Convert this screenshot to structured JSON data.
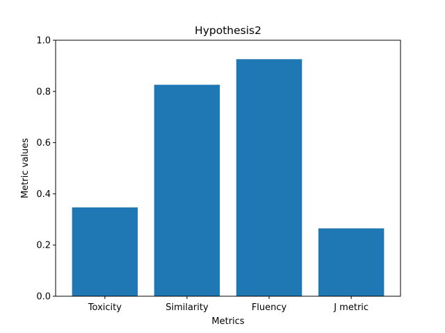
{
  "chart_data": {
    "type": "bar",
    "title": "Hypothesis2",
    "xlabel": "Metrics",
    "ylabel": "Metric values",
    "categories": [
      "Toxicity",
      "Similarity",
      "Fluency",
      "J metric"
    ],
    "values": [
      0.347,
      0.826,
      0.926,
      0.265
    ],
    "ylim": [
      0,
      1.0
    ],
    "yticks": [
      "0.0",
      "0.2",
      "0.4",
      "0.6",
      "0.8",
      "1.0"
    ],
    "bar_color": "#1f77b4",
    "grid": false,
    "legend": "none"
  }
}
